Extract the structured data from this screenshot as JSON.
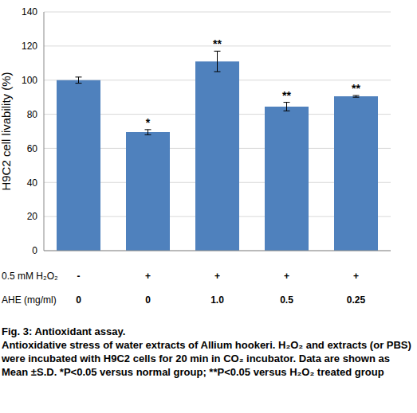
{
  "chart_data": {
    "type": "bar",
    "y_label": "H9C2 cell livability (%)",
    "values": [
      100,
      69.5,
      111,
      84.5,
      90.5
    ],
    "errors": [
      1.8,
      1.5,
      6,
      2.5,
      0.5
    ],
    "annotations": [
      null,
      "*",
      "**",
      "**",
      "**"
    ],
    "x_rows": [
      {
        "label": "0.5 mM H₂O₂",
        "values": [
          "-",
          "+",
          "+",
          "+",
          "+"
        ]
      },
      {
        "label": "AHE (mg/ml)",
        "values": [
          "0",
          "0",
          "1.0",
          "0.5",
          "0.25"
        ]
      }
    ],
    "color": "#4f81bd",
    "ylim": [
      0,
      140
    ],
    "yticks": [
      0,
      20,
      40,
      60,
      80,
      100,
      120,
      140
    ],
    "grid": true,
    "caption_title": "Fig. 3: Antioxidant assay.",
    "caption": "Antioxidative stress of water extracts of Allium hookeri. H₂O₂ and extracts (or PBS) were incubated with H9C2 cells for 20 min in CO₂ incubator. Data are shown as Mean ±S.D. *P<0.05 versus normal group; **P<0.05 versus H₂O₂ treated group"
  }
}
